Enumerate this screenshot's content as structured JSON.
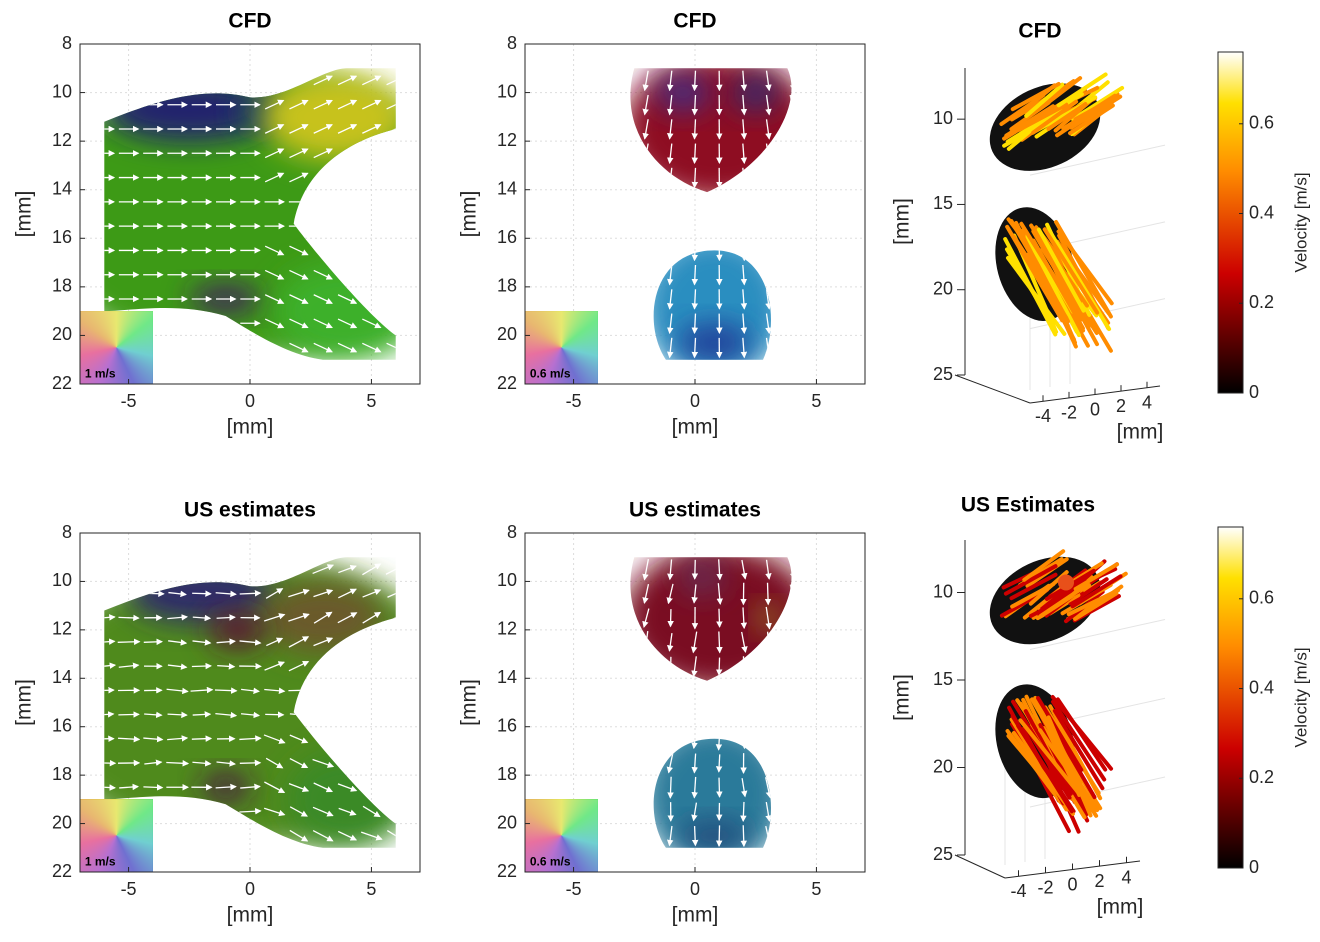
{
  "chart_data": [
    {
      "type": "vector-field",
      "title": "CFD",
      "xlabel": "[mm]",
      "ylabel": "[mm]",
      "xlim": [
        -7,
        7
      ],
      "ylim": [
        22,
        8
      ],
      "xticks": [
        -5,
        0,
        5
      ],
      "yticks": [
        8,
        10,
        12,
        14,
        16,
        18,
        20,
        22
      ],
      "grid": true,
      "legend_label": "1 m/s"
    },
    {
      "type": "vector-field",
      "title": "CFD",
      "xlabel": "[mm]",
      "ylabel": "[mm]",
      "xlim": [
        -7,
        7
      ],
      "ylim": [
        22,
        8
      ],
      "xticks": [
        -5,
        0,
        5
      ],
      "yticks": [
        8,
        10,
        12,
        14,
        16,
        18,
        20,
        22
      ],
      "grid": true,
      "legend_label": "0.6 m/s"
    },
    {
      "type": "vector-field-3d",
      "title": "CFD",
      "xlabel": "[mm]",
      "ylabel": "[mm]",
      "xlim": [
        -5,
        5
      ],
      "ylim": [
        25,
        7
      ],
      "xticks": [
        -4,
        -2,
        0,
        2,
        4
      ],
      "yticks": [
        10,
        15,
        20,
        25
      ]
    },
    {
      "type": "colorbar",
      "label": "Velocity [m/s]",
      "colormap": "hot",
      "ylim": [
        0,
        0.76
      ],
      "yticks": [
        0,
        0.2,
        0.4,
        0.6
      ]
    },
    {
      "type": "vector-field",
      "title": "US estimates",
      "xlabel": "[mm]",
      "ylabel": "[mm]",
      "xlim": [
        -7,
        7
      ],
      "ylim": [
        22,
        8
      ],
      "xticks": [
        -5,
        0,
        5
      ],
      "yticks": [
        8,
        10,
        12,
        14,
        16,
        18,
        20,
        22
      ],
      "grid": true,
      "legend_label": "1 m/s"
    },
    {
      "type": "vector-field",
      "title": "US estimates",
      "xlabel": "[mm]",
      "ylabel": "[mm]",
      "xlim": [
        -7,
        7
      ],
      "ylim": [
        22,
        8
      ],
      "xticks": [
        -5,
        0,
        5
      ],
      "yticks": [
        8,
        10,
        12,
        14,
        16,
        18,
        20,
        22
      ],
      "grid": true,
      "legend_label": "0.6 m/s"
    },
    {
      "type": "vector-field-3d",
      "title": "US Estimates",
      "xlabel": "[mm]",
      "ylabel": "[mm]",
      "xlim": [
        -5,
        5
      ],
      "ylim": [
        25,
        7
      ],
      "xticks": [
        -4,
        -2,
        0,
        2,
        4
      ],
      "yticks": [
        10,
        15,
        20,
        25
      ]
    },
    {
      "type": "colorbar",
      "label": "Velocity [m/s]",
      "colormap": "hot",
      "ylim": [
        0,
        0.76
      ],
      "yticks": [
        0,
        0.2,
        0.4,
        0.6
      ]
    }
  ]
}
